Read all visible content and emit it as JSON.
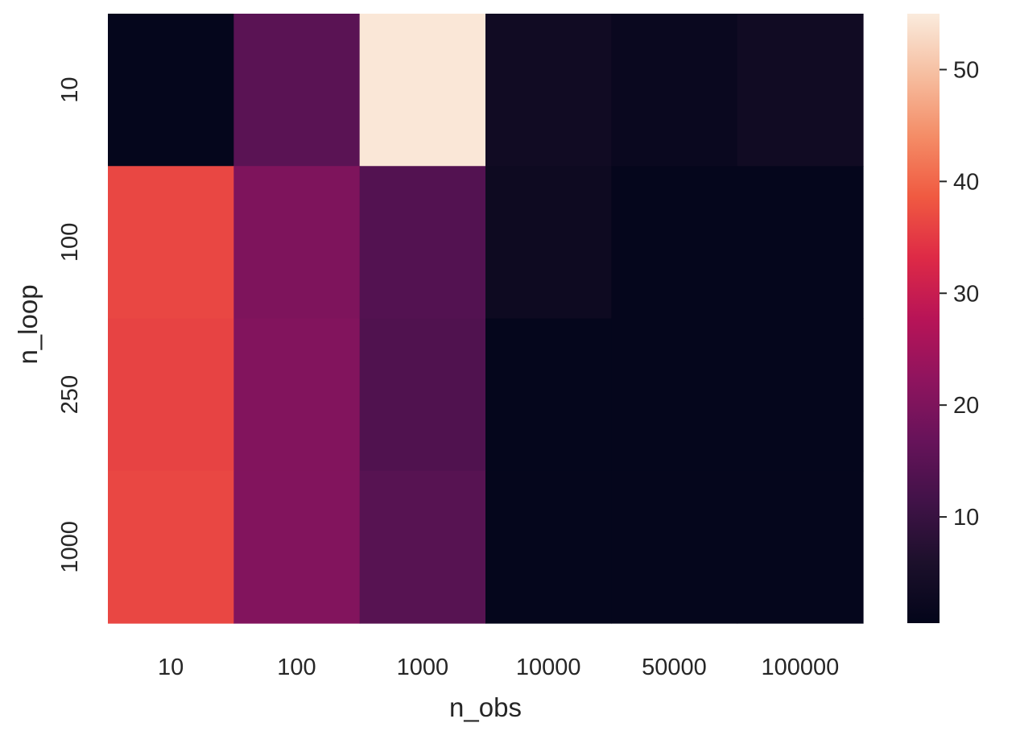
{
  "chart_data": {
    "type": "heatmap",
    "title": "",
    "xlabel": "n_obs",
    "ylabel": "n_loop",
    "x_categories": [
      "10",
      "100",
      "1000",
      "10000",
      "50000",
      "100000"
    ],
    "y_categories": [
      "10",
      "100",
      "250",
      "1000"
    ],
    "values": [
      [
        1.0,
        15.0,
        54.5,
        3.5,
        2.0,
        3.5
      ],
      [
        36.5,
        20.0,
        14.0,
        2.8,
        1.0,
        1.0
      ],
      [
        36.0,
        20.5,
        13.5,
        1.0,
        1.0,
        1.0
      ],
      [
        36.5,
        20.5,
        14.5,
        1.0,
        1.0,
        1.0
      ]
    ],
    "colorbar": {
      "range": [
        0.5,
        55
      ],
      "ticks": [
        10,
        20,
        30,
        40,
        50
      ],
      "tick_labels": [
        "10",
        "20",
        "30",
        "40",
        "50"
      ],
      "colormap": "rocket"
    },
    "grid": false,
    "legend": "colorbar right"
  }
}
